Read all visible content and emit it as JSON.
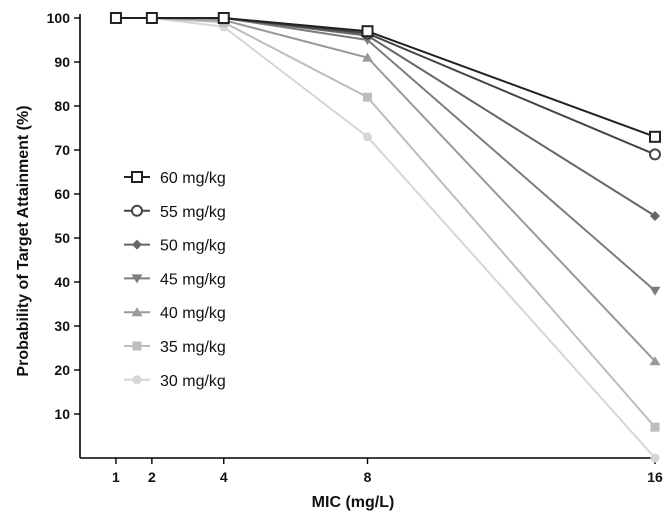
{
  "chart_data": {
    "type": "line",
    "title": "",
    "xlabel": "MIC (mg/L)",
    "ylabel": "Probability of Target Attainment (%)",
    "x": [
      1,
      2,
      4,
      8,
      16
    ],
    "xticks": [
      1,
      2,
      4,
      8,
      16
    ],
    "xlim": [
      0,
      16
    ],
    "ylim": [
      0,
      100
    ],
    "yticks": [
      10,
      20,
      30,
      40,
      50,
      60,
      70,
      80,
      90,
      100
    ],
    "grid": false,
    "legend_position": "left",
    "series": [
      {
        "name": "60 mg/kg",
        "values": [
          100,
          100,
          100,
          97,
          73
        ],
        "color": "#222222",
        "marker": "open-square"
      },
      {
        "name": "55 mg/kg",
        "values": [
          100,
          100,
          100,
          96.5,
          69
        ],
        "color": "#444444",
        "marker": "open-circle"
      },
      {
        "name": "50 mg/kg",
        "values": [
          100,
          100,
          100,
          96,
          55
        ],
        "color": "#666666",
        "marker": "diamond"
      },
      {
        "name": "45 mg/kg",
        "values": [
          100,
          100,
          100,
          95,
          38
        ],
        "color": "#7d7d7d",
        "marker": "triangle-down"
      },
      {
        "name": "40 mg/kg",
        "values": [
          100,
          100,
          99.5,
          91,
          22
        ],
        "color": "#999999",
        "marker": "triangle-up"
      },
      {
        "name": "35 mg/kg",
        "values": [
          100,
          100,
          99,
          82,
          7
        ],
        "color": "#bdbdbd",
        "marker": "square"
      },
      {
        "name": "30 mg/kg",
        "values": [
          100,
          100,
          98,
          73,
          0
        ],
        "color": "#d6d6d6",
        "marker": "circle"
      }
    ]
  }
}
